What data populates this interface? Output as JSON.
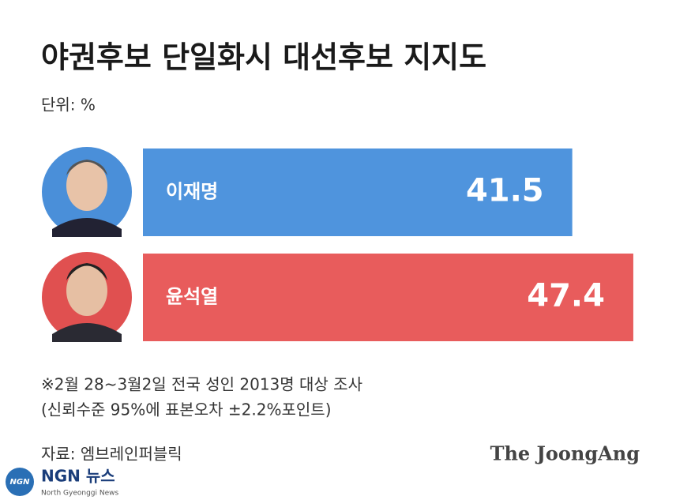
{
  "chart_data": {
    "type": "bar",
    "orientation": "horizontal",
    "title": "야권후보 단일화시  대선후보 지지도",
    "unit_note": "단위: %",
    "categories": [
      "이재명",
      "윤석열"
    ],
    "values": [
      41.5,
      47.4
    ],
    "colors": [
      "#4f94dd",
      "#e85c5c"
    ],
    "notes": [
      "※2월 28~3월2일 전국 성인 2013명 대상 조사",
      "(신뢰수준 95%에 표본오차 ±2.2%포인트)"
    ],
    "source": "자료: 엠브레인퍼블릭",
    "brand": "The JoongAng"
  },
  "watermark": {
    "logo": "NGN",
    "name": "NGN 뉴스",
    "subtitle": "North Gyeonggi News"
  }
}
